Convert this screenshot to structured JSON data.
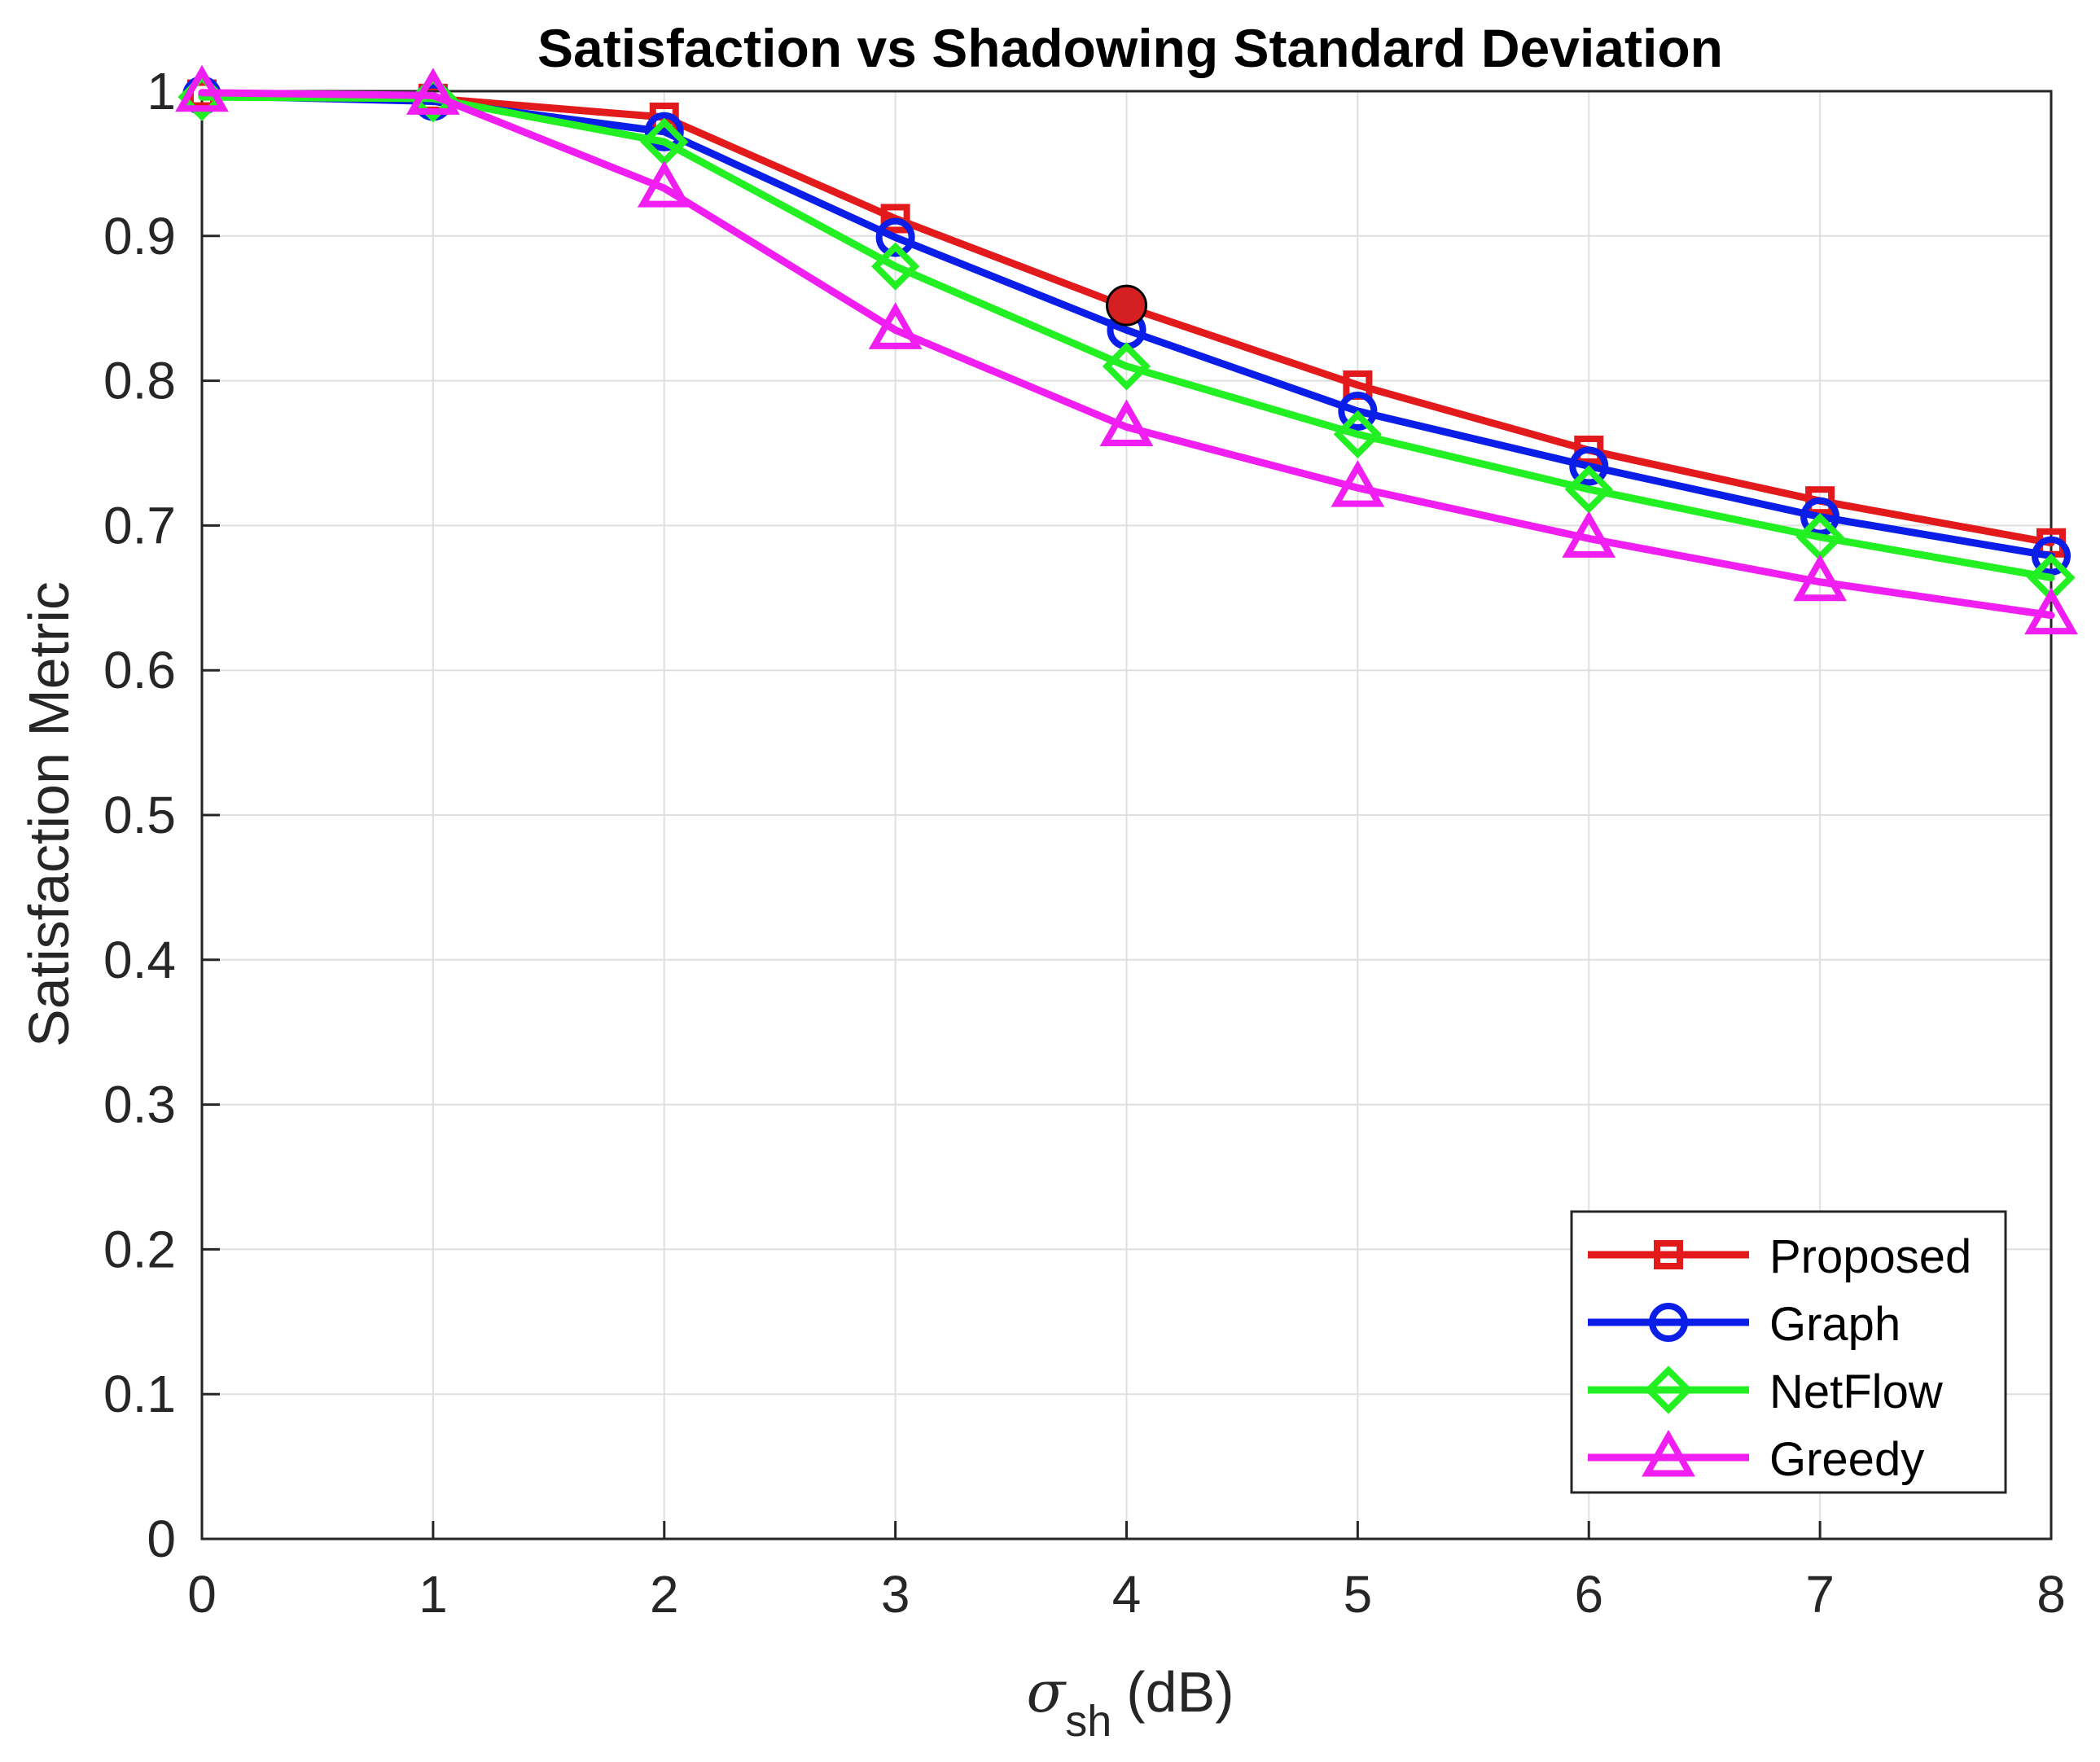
{
  "chart_data": {
    "type": "line",
    "title": "Satisfaction vs Shadowing Standard Deviation",
    "xlabel_symbol": "σ",
    "xlabel_subscript": "sh",
    "xlabel_unit": "(dB)",
    "ylabel": "Satisfaction Metric",
    "xlim": [
      0,
      8
    ],
    "ylim": [
      0,
      1
    ],
    "xticks": [
      "0",
      "1",
      "2",
      "3",
      "4",
      "5",
      "6",
      "7",
      "8"
    ],
    "yticks": [
      "0",
      "0.1",
      "0.2",
      "0.3",
      "0.4",
      "0.5",
      "0.6",
      "0.7",
      "0.8",
      "0.9",
      "1"
    ],
    "grid": true,
    "legend_position": "bottom-right",
    "x": [
      0,
      1,
      2,
      3,
      4,
      5,
      6,
      7,
      8
    ],
    "series": [
      {
        "name": "Proposed",
        "color": "#e31a1c",
        "marker": "square",
        "values": [
          0.998,
          0.995,
          0.982,
          0.912,
          0.851,
          0.797,
          0.752,
          0.717,
          0.688
        ]
      },
      {
        "name": "Graph",
        "color": "#0a1ee8",
        "marker": "circle",
        "values": [
          0.997,
          0.993,
          0.972,
          0.899,
          0.835,
          0.779,
          0.741,
          0.706,
          0.679
        ]
      },
      {
        "name": "NetFlow",
        "color": "#22f022",
        "marker": "diamond",
        "values": [
          0.996,
          0.995,
          0.965,
          0.879,
          0.81,
          0.763,
          0.725,
          0.692,
          0.664
        ]
      },
      {
        "name": "Greedy",
        "color": "#f01ef0",
        "marker": "triangle",
        "values": [
          0.999,
          0.997,
          0.933,
          0.835,
          0.768,
          0.726,
          0.691,
          0.661,
          0.638
        ]
      }
    ],
    "highlight": {
      "x": 4,
      "y": 0.852,
      "color": "#d42020"
    }
  }
}
